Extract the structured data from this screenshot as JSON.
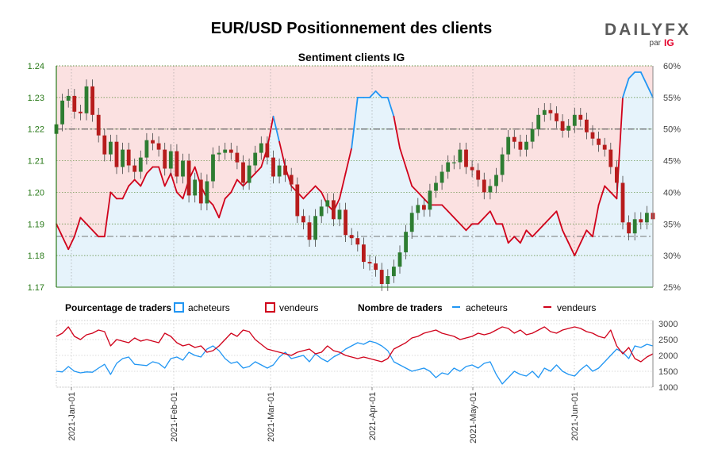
{
  "header": {
    "title": "EUR/USD Positionnement des clients",
    "subtitle": "Sentiment clients IG",
    "brand_daily": "DAILY",
    "brand_fx": "FX",
    "brand_par": "par",
    "brand_ig": "IG"
  },
  "legend": {
    "pct_heading": "Pourcentage de traders",
    "pct_buyers": "acheteurs",
    "pct_sellers": "vendeurs",
    "count_heading": "Nombre de traders",
    "count_buyers": "acheteurs",
    "count_sellers": "vendeurs"
  },
  "colors": {
    "buyers": "#2196f3",
    "sellers": "#d0021b",
    "buyers_fill": "#e6f3fb",
    "sellers_fill": "#fbe1e1",
    "candle_up": "#2e7d32",
    "candle_down": "#b71c1c",
    "price_axis": "#2a7a1a"
  },
  "chart_data": [
    {
      "type": "candlestick",
      "panel": "price",
      "x_labels": [
        "2021-Jan-01",
        "2021-Feb-01",
        "2021-Mar-01",
        "2021-Apr-01",
        "2021-May-01",
        "2021-Jun-01"
      ],
      "price_axis": {
        "ticks": [
          "1.24",
          "1.23",
          "1.22",
          "1.21",
          "1.20",
          "1.19",
          "1.18",
          "1.17"
        ],
        "ylim": [
          1.17,
          1.24
        ]
      },
      "percent_axis": {
        "ticks": [
          "60%",
          "55%",
          "50%",
          "45%",
          "40%",
          "35%",
          "30%",
          "25%"
        ],
        "ylim": [
          25,
          60
        ]
      },
      "close": [
        1.2215,
        1.229,
        1.2305,
        1.2255,
        1.225,
        1.2335,
        1.2245,
        1.218,
        1.212,
        1.216,
        1.208,
        1.2135,
        1.2085,
        1.2065,
        1.211,
        1.2165,
        1.2155,
        1.2135,
        1.2075,
        1.213,
        1.205,
        1.21,
        1.199,
        1.204,
        1.1965,
        1.2035,
        1.212,
        1.2125,
        1.2135,
        1.2125,
        1.2095,
        1.203,
        1.2085,
        1.2125,
        1.2155,
        1.211,
        1.205,
        1.2085,
        1.2055,
        1.2025,
        1.1925,
        1.1905,
        1.185,
        1.1925,
        1.1955,
        1.1975,
        1.1915,
        1.1945,
        1.1865,
        1.1855,
        1.1835,
        1.178,
        1.1775,
        1.1755,
        1.171,
        1.1735,
        1.1765,
        1.181,
        1.1875,
        1.1935,
        1.196,
        1.1945,
        1.2005,
        1.203,
        1.2065,
        1.2095,
        1.2095,
        1.2135,
        1.208,
        1.207,
        1.204,
        1.2,
        1.202,
        1.2055,
        1.212,
        1.2175,
        1.216,
        1.2135,
        1.216,
        1.22,
        1.2245,
        1.226,
        1.225,
        1.2225,
        1.2195,
        1.221,
        1.2245,
        1.223,
        1.219,
        1.217,
        1.215,
        1.2135,
        1.208,
        1.203,
        1.1905,
        1.187,
        1.1915,
        1.1905,
        1.1935,
        1.1915
      ],
      "percent_buyers": [
        35,
        33,
        31,
        33,
        36,
        35,
        34,
        33,
        33,
        40,
        39,
        39,
        41,
        42,
        41,
        43,
        44,
        44,
        41,
        43,
        40,
        39,
        42,
        44,
        41,
        39,
        38,
        36,
        39,
        40,
        42,
        41,
        42,
        43,
        44,
        47,
        52,
        48,
        44,
        41,
        40,
        39,
        40,
        41,
        40,
        38,
        37,
        39,
        43,
        47,
        55,
        55,
        55,
        56,
        55,
        55,
        52,
        47,
        44,
        41,
        40,
        39,
        38,
        38,
        38,
        37,
        36,
        35,
        34,
        35,
        35,
        36,
        37,
        35,
        35,
        32,
        33,
        32,
        34,
        33,
        34,
        35,
        36,
        37,
        34,
        32,
        30,
        32,
        34,
        33,
        38,
        41,
        40,
        39,
        55,
        58,
        59,
        59,
        57,
        55
      ],
      "percent_sellers": [
        65,
        67,
        69,
        67,
        64,
        65,
        66,
        67,
        67,
        60,
        61,
        61,
        59,
        58,
        59,
        57,
        56,
        56,
        59,
        57,
        60,
        61,
        58,
        56,
        59,
        61,
        62,
        64,
        61,
        60,
        58,
        59,
        58,
        57,
        56,
        53,
        48,
        52,
        56,
        59,
        60,
        61,
        60,
        59,
        60,
        62,
        63,
        61,
        57,
        53,
        45,
        45,
        45,
        44,
        45,
        45,
        48,
        53,
        56,
        59,
        60,
        61,
        62,
        62,
        62,
        63,
        64,
        65,
        66,
        65,
        65,
        64,
        63,
        65,
        65,
        68,
        67,
        68,
        66,
        67,
        66,
        65,
        64,
        63,
        66,
        68,
        70,
        68,
        66,
        67,
        62,
        59,
        60,
        61,
        45,
        42,
        41,
        41,
        43,
        45
      ]
    },
    {
      "type": "line",
      "panel": "count",
      "y_axis": {
        "ticks": [
          "3000",
          "2500",
          "2000",
          "1500",
          "1000"
        ],
        "ylim": [
          1000,
          3100
        ]
      },
      "series": [
        {
          "name": "acheteurs",
          "values": [
            1500,
            1480,
            1650,
            1500,
            1450,
            1480,
            1470,
            1600,
            1720,
            1400,
            1750,
            1900,
            1950,
            1720,
            1700,
            1680,
            1800,
            1750,
            1600,
            1900,
            1950,
            1850,
            2100,
            2000,
            1950,
            2200,
            2300,
            2150,
            1900,
            1750,
            1800,
            1600,
            1650,
            1800,
            1700,
            1600,
            1700,
            1950,
            2100,
            1900,
            1950,
            2000,
            1800,
            2050,
            1900,
            1800,
            1950,
            2050,
            2200,
            2300,
            2400,
            2350,
            2450,
            2400,
            2300,
            2150,
            1800,
            1700,
            1600,
            1500,
            1550,
            1600,
            1500,
            1300,
            1450,
            1400,
            1600,
            1500,
            1650,
            1700,
            1600,
            1750,
            1800,
            1400,
            1100,
            1300,
            1500,
            1400,
            1350,
            1500,
            1300,
            1600,
            1500,
            1700,
            1500,
            1400,
            1350,
            1550,
            1700,
            1500,
            1600,
            1800,
            2000,
            2200,
            2100,
            1900,
            2300,
            2250,
            2350,
            2300
          ]
        },
        {
          "name": "vendeurs",
          "values": [
            2600,
            2700,
            2900,
            2600,
            2500,
            2650,
            2700,
            2800,
            2750,
            2300,
            2500,
            2450,
            2400,
            2550,
            2450,
            2500,
            2450,
            2400,
            2700,
            2600,
            2400,
            2300,
            2350,
            2250,
            2300,
            2100,
            2150,
            2300,
            2500,
            2700,
            2600,
            2800,
            2750,
            2500,
            2350,
            2200,
            2150,
            2100,
            2050,
            2000,
            2100,
            2150,
            2200,
            2050,
            2100,
            2300,
            2150,
            2100,
            2000,
            1950,
            1900,
            1950,
            1900,
            1850,
            1800,
            1900,
            2200,
            2300,
            2400,
            2550,
            2600,
            2700,
            2750,
            2800,
            2700,
            2650,
            2600,
            2500,
            2550,
            2600,
            2700,
            2650,
            2700,
            2800,
            2900,
            2850,
            2700,
            2800,
            2650,
            2700,
            2800,
            2900,
            2750,
            2700,
            2800,
            2850,
            2900,
            2850,
            2750,
            2700,
            2600,
            2550,
            2800,
            2300,
            2050,
            2250,
            1900,
            1800,
            1950,
            2050
          ]
        }
      ]
    }
  ]
}
